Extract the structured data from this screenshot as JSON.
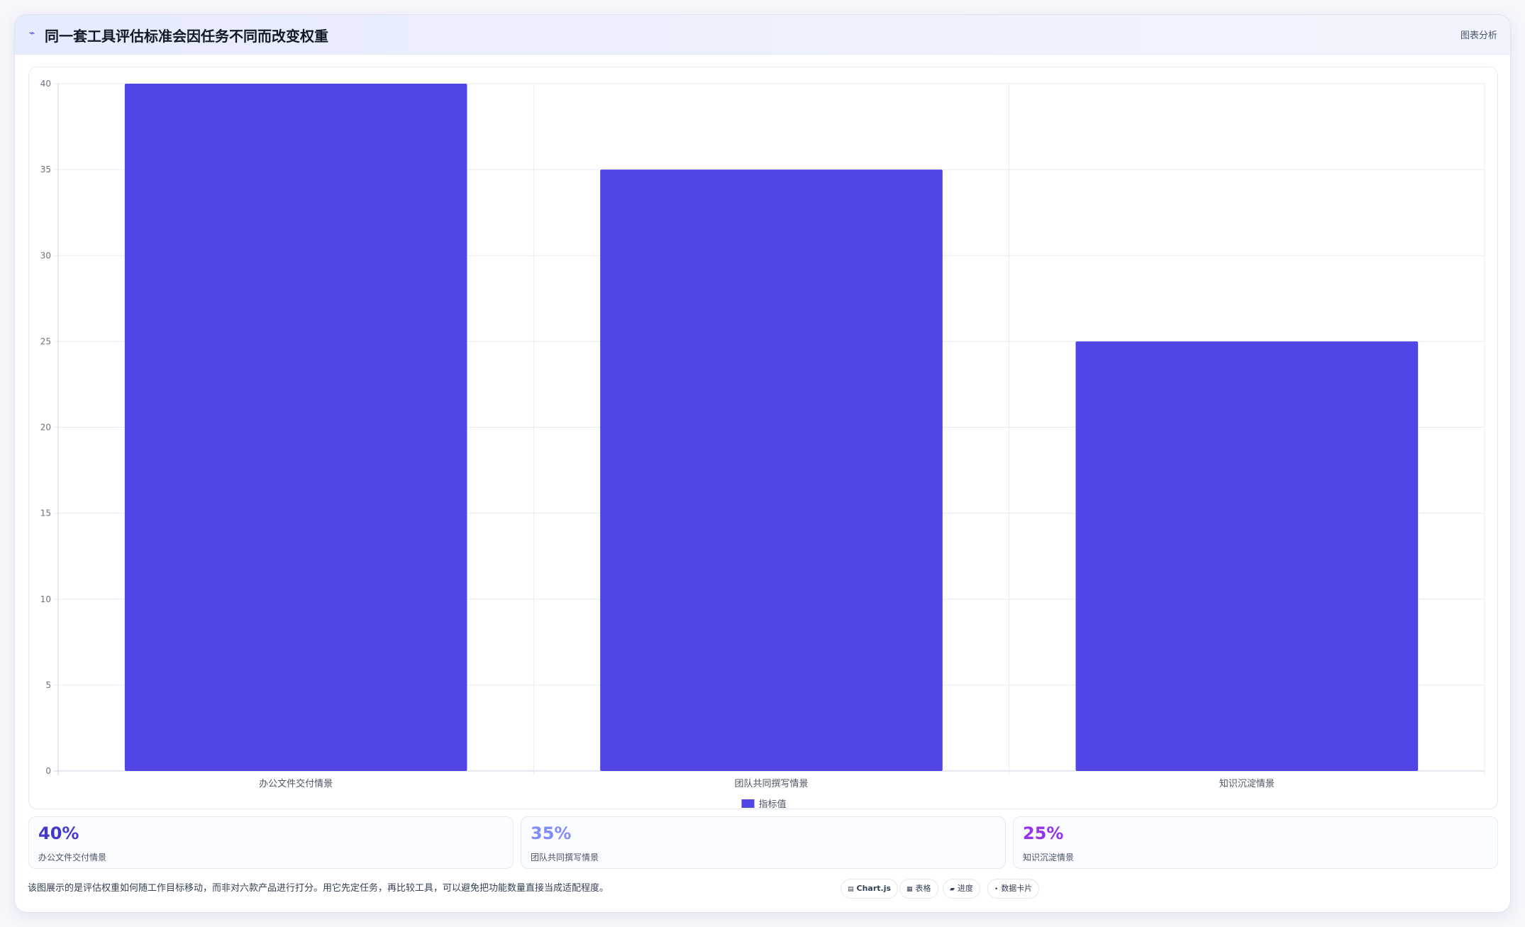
{
  "header": {
    "icon": "chart-line-icon",
    "title": "同一套工具评估标准会因任务不同而改变权重",
    "tag": "图表分析"
  },
  "chart_data": {
    "type": "bar",
    "categories": [
      "办公文件交付情景",
      "团队共同撰写情景",
      "知识沉淀情景"
    ],
    "series": [
      {
        "name": "指标值",
        "values": [
          40,
          35,
          25
        ],
        "color": "#4f46e5"
      }
    ],
    "ylim": [
      0,
      40
    ],
    "yticks": [
      0,
      5,
      10,
      15,
      20,
      25,
      30,
      35,
      40
    ],
    "grid": true,
    "legend": "bottom"
  },
  "stats": [
    {
      "value": "40%",
      "label": "办公文件交付情景",
      "color": "#4338ca"
    },
    {
      "value": "35%",
      "label": "团队共同撰写情景",
      "color": "#818cf8"
    },
    {
      "value": "25%",
      "label": "知识沉淀情景",
      "color": "#9333ea"
    }
  ],
  "footer": {
    "note": "该图展示的是评估权重如何随工作目标移动，而非对六款产品进行打分。用它先定任务，再比较工具，可以避免把功能数量直接当成适配程度。",
    "pills": [
      {
        "icon": "chart-icon",
        "glyph": "▤",
        "label": "Chart.js"
      },
      {
        "icon": "table-icon",
        "glyph": "▦",
        "label": "表格"
      },
      {
        "icon": "progress-icon",
        "glyph": "▰",
        "label": "进度"
      },
      {
        "icon": "card-icon",
        "glyph": "•",
        "label": "数据卡片"
      }
    ]
  }
}
